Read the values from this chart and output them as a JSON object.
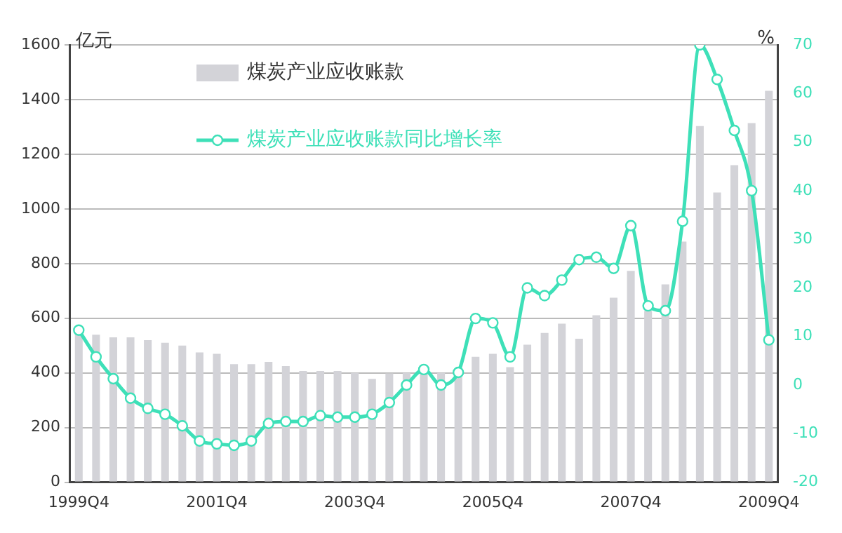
{
  "chart_data": {
    "type": "bar",
    "ylabel": "亿元",
    "y2label": "%",
    "categories": [
      "1999Q4",
      null,
      null,
      null,
      null,
      null,
      null,
      null,
      "2001Q4",
      null,
      null,
      null,
      null,
      null,
      null,
      null,
      "2003Q4",
      null,
      null,
      null,
      null,
      null,
      null,
      null,
      "2005Q4",
      null,
      null,
      null,
      null,
      null,
      null,
      null,
      "2007Q4",
      null,
      null,
      null,
      null,
      null,
      null,
      null,
      "2009Q4"
    ],
    "series": [
      {
        "name": "煤炭产业应收账款",
        "color": "#d3d3d8",
        "values": [
          560,
          540,
          530,
          530,
          520,
          510,
          500,
          475,
          470,
          432,
          432,
          440,
          425,
          407,
          407,
          407,
          400,
          378,
          398,
          400,
          411,
          400,
          385,
          459,
          470,
          421,
          503,
          546,
          580,
          525,
          611,
          675,
          773,
          627,
          724,
          880,
          1303,
          1060,
          1160,
          1314,
          1432
        ]
      },
      {
        "name": "煤炭产业应收账款同比增长率",
        "type": "line",
        "axis": "y2",
        "color": "#3ee0b8",
        "values": [
          11.3,
          5.8,
          1.3,
          -2.7,
          -4.8,
          -6,
          -8.4,
          -11.5,
          -12.1,
          -12.4,
          -11.5,
          -7.9,
          -7.5,
          -7.5,
          -6.3,
          -6.6,
          -6.6,
          -6,
          -3.6,
          0,
          3.2,
          0,
          2.6,
          13.7,
          12.8,
          5.8,
          20,
          18.4,
          21.6,
          25.8,
          26.3,
          24,
          32.8,
          16.3,
          15.3,
          33.7,
          70,
          62.9,
          52.4,
          40,
          9.3
        ]
      }
    ],
    "ylim": [
      0,
      1600
    ],
    "yticks": [
      0,
      200,
      400,
      600,
      800,
      1000,
      1200,
      1400,
      1600
    ],
    "y2lim": [
      -20,
      70
    ],
    "y2ticks": [
      -20,
      -10,
      0,
      10,
      20,
      30,
      40,
      50,
      60,
      70
    ],
    "grid": "y",
    "legend": "top left",
    "marker": "circle",
    "line_style": "solid"
  }
}
